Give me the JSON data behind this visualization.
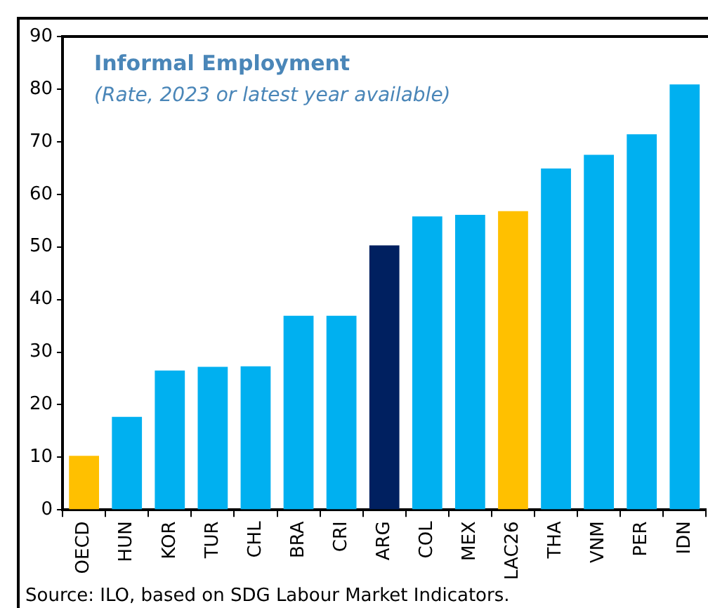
{
  "chart_data": {
    "type": "bar",
    "title": "Informal Employment",
    "subtitle": "(Rate, 2023 or latest year available)",
    "categories": [
      "OECD",
      "HUN",
      "KOR",
      "TUR",
      "CHL",
      "BRA",
      "CRI",
      "ARG",
      "COL",
      "MEX",
      "LAC26",
      "THA",
      "VNM",
      "PER",
      "IDN"
    ],
    "values": [
      10.3,
      17.7,
      26.5,
      27.2,
      27.3,
      36.9,
      36.9,
      50.3,
      55.8,
      56.1,
      56.8,
      64.9,
      67.5,
      71.4,
      80.9
    ],
    "colors": [
      "#ffc000",
      "#00b0f0",
      "#00b0f0",
      "#00b0f0",
      "#00b0f0",
      "#00b0f0",
      "#00b0f0",
      "#002060",
      "#00b0f0",
      "#00b0f0",
      "#ffc000",
      "#00b0f0",
      "#00b0f0",
      "#00b0f0",
      "#00b0f0"
    ],
    "ylim": [
      0,
      90
    ],
    "yticks": [
      0,
      10,
      20,
      30,
      40,
      50,
      60,
      70,
      80,
      90
    ],
    "grid": false,
    "legend": false,
    "annotations": [
      "Source: ILO, based on SDG Labour Market Indicators."
    ]
  }
}
